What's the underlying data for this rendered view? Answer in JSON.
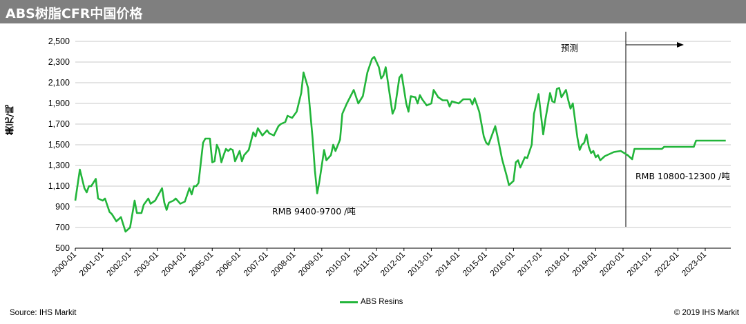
{
  "header": {
    "title": "ABS树脂CFR中国价格"
  },
  "source": "Source: IHS Markit",
  "copyright": "© 2019 IHS Markit",
  "colors": {
    "series": "#22b53a",
    "header_bg": "#7f7f7f"
  },
  "chart_data": {
    "type": "line",
    "title": "ABS树脂CFR中国价格",
    "ylabel": "美元/吨",
    "xlabel": "",
    "ylim": [
      500,
      2500
    ],
    "yticks": [
      "500",
      "700",
      "900",
      "1,100",
      "1,300",
      "1,500",
      "1,700",
      "1,900",
      "2,100",
      "2,300",
      "2,500"
    ],
    "xticks": [
      "2000-01",
      "2001-01",
      "2002-01",
      "2003-01",
      "2004-01",
      "2005-01",
      "2006-01",
      "2007-01",
      "2008-01",
      "2009-01",
      "2010-01",
      "2011-01",
      "2012-01",
      "2013-01",
      "2014-01",
      "2015-01",
      "2016-01",
      "2017-01",
      "2018-01",
      "2019-01",
      "2020-01",
      "2021-01",
      "2022-01",
      "2023-01"
    ],
    "grid": true,
    "legend_position": "bottom",
    "forecast_start": "2020-01",
    "forecast_label": "预测",
    "annotations": [
      "RMB 9400-9700 /吨",
      "RMB 10800-12300 /吨"
    ],
    "series": [
      {
        "name": "ABS Resins",
        "points": [
          [
            "2000-01",
            960
          ],
          [
            "2000-03",
            1260
          ],
          [
            "2000-05",
            1080
          ],
          [
            "2000-06",
            1040
          ],
          [
            "2000-07",
            1100
          ],
          [
            "2000-08",
            1100
          ],
          [
            "2000-10",
            1170
          ],
          [
            "2000-11",
            980
          ],
          [
            "2001-01",
            960
          ],
          [
            "2001-02",
            980
          ],
          [
            "2001-04",
            850
          ],
          [
            "2001-05",
            830
          ],
          [
            "2001-07",
            760
          ],
          [
            "2001-09",
            800
          ],
          [
            "2001-11",
            660
          ],
          [
            "2002-01",
            700
          ],
          [
            "2002-03",
            960
          ],
          [
            "2002-04",
            840
          ],
          [
            "2002-06",
            840
          ],
          [
            "2002-07",
            920
          ],
          [
            "2002-09",
            980
          ],
          [
            "2002-10",
            930
          ],
          [
            "2002-12",
            960
          ],
          [
            "2003-03",
            1080
          ],
          [
            "2003-04",
            940
          ],
          [
            "2003-05",
            870
          ],
          [
            "2003-06",
            940
          ],
          [
            "2003-08",
            960
          ],
          [
            "2003-09",
            980
          ],
          [
            "2003-11",
            930
          ],
          [
            "2004-01",
            950
          ],
          [
            "2004-03",
            1080
          ],
          [
            "2004-04",
            1020
          ],
          [
            "2004-05",
            1100
          ],
          [
            "2004-06",
            1100
          ],
          [
            "2004-07",
            1130
          ],
          [
            "2004-09",
            1520
          ],
          [
            "2004-10",
            1560
          ],
          [
            "2004-12",
            1560
          ],
          [
            "2005-01",
            1330
          ],
          [
            "2005-02",
            1340
          ],
          [
            "2005-03",
            1500
          ],
          [
            "2005-04",
            1450
          ],
          [
            "2005-05",
            1330
          ],
          [
            "2005-06",
            1400
          ],
          [
            "2005-07",
            1460
          ],
          [
            "2005-08",
            1440
          ],
          [
            "2005-09",
            1460
          ],
          [
            "2005-10",
            1450
          ],
          [
            "2005-11",
            1340
          ],
          [
            "2006-01",
            1440
          ],
          [
            "2006-02",
            1340
          ],
          [
            "2006-03",
            1400
          ],
          [
            "2006-05",
            1450
          ],
          [
            "2006-07",
            1620
          ],
          [
            "2006-08",
            1580
          ],
          [
            "2006-09",
            1660
          ],
          [
            "2006-11",
            1590
          ],
          [
            "2007-01",
            1640
          ],
          [
            "2007-02",
            1610
          ],
          [
            "2007-04",
            1590
          ],
          [
            "2007-06",
            1680
          ],
          [
            "2007-07",
            1700
          ],
          [
            "2007-09",
            1720
          ],
          [
            "2007-10",
            1780
          ],
          [
            "2007-12",
            1760
          ],
          [
            "2008-02",
            1820
          ],
          [
            "2008-04",
            2000
          ],
          [
            "2008-05",
            2200
          ],
          [
            "2008-07",
            2050
          ],
          [
            "2008-09",
            1560
          ],
          [
            "2008-10",
            1250
          ],
          [
            "2008-11",
            1030
          ],
          [
            "2008-12",
            1150
          ],
          [
            "2009-02",
            1450
          ],
          [
            "2009-03",
            1350
          ],
          [
            "2009-05",
            1400
          ],
          [
            "2009-06",
            1500
          ],
          [
            "2009-07",
            1440
          ],
          [
            "2009-09",
            1550
          ],
          [
            "2009-10",
            1800
          ],
          [
            "2009-12",
            1900
          ],
          [
            "2010-03",
            2030
          ],
          [
            "2010-05",
            1900
          ],
          [
            "2010-07",
            1970
          ],
          [
            "2010-09",
            2200
          ],
          [
            "2010-11",
            2330
          ],
          [
            "2010-12",
            2350
          ],
          [
            "2011-02",
            2250
          ],
          [
            "2011-03",
            2140
          ],
          [
            "2011-04",
            2170
          ],
          [
            "2011-05",
            2250
          ],
          [
            "2011-07",
            1950
          ],
          [
            "2011-08",
            1800
          ],
          [
            "2011-09",
            1850
          ],
          [
            "2011-11",
            2150
          ],
          [
            "2011-12",
            2180
          ],
          [
            "2012-02",
            1900
          ],
          [
            "2012-03",
            1820
          ],
          [
            "2012-04",
            1970
          ],
          [
            "2012-06",
            1960
          ],
          [
            "2012-07",
            1900
          ],
          [
            "2012-08",
            1980
          ],
          [
            "2012-09",
            1940
          ],
          [
            "2012-11",
            1880
          ],
          [
            "2013-01",
            1900
          ],
          [
            "2013-02",
            2030
          ],
          [
            "2013-04",
            1960
          ],
          [
            "2013-06",
            1930
          ],
          [
            "2013-08",
            1930
          ],
          [
            "2013-09",
            1870
          ],
          [
            "2013-10",
            1920
          ],
          [
            "2014-01",
            1900
          ],
          [
            "2014-03",
            1940
          ],
          [
            "2014-06",
            1940
          ],
          [
            "2014-07",
            1890
          ],
          [
            "2014-08",
            1950
          ],
          [
            "2014-10",
            1820
          ],
          [
            "2014-12",
            1580
          ],
          [
            "2015-01",
            1520
          ],
          [
            "2015-02",
            1500
          ],
          [
            "2015-04",
            1620
          ],
          [
            "2015-05",
            1680
          ],
          [
            "2015-06",
            1580
          ],
          [
            "2015-08",
            1360
          ],
          [
            "2015-10",
            1200
          ],
          [
            "2015-11",
            1110
          ],
          [
            "2016-01",
            1150
          ],
          [
            "2016-02",
            1330
          ],
          [
            "2016-03",
            1350
          ],
          [
            "2016-04",
            1280
          ],
          [
            "2016-06",
            1380
          ],
          [
            "2016-07",
            1370
          ],
          [
            "2016-09",
            1500
          ],
          [
            "2016-10",
            1800
          ],
          [
            "2016-12",
            1990
          ],
          [
            "2017-02",
            1600
          ],
          [
            "2017-03",
            1750
          ],
          [
            "2017-05",
            2000
          ],
          [
            "2017-06",
            1920
          ],
          [
            "2017-07",
            1910
          ],
          [
            "2017-08",
            2040
          ],
          [
            "2017-09",
            2050
          ],
          [
            "2017-10",
            1960
          ],
          [
            "2017-12",
            2030
          ],
          [
            "2018-01",
            1930
          ],
          [
            "2018-02",
            1850
          ],
          [
            "2018-03",
            1900
          ],
          [
            "2018-05",
            1570
          ],
          [
            "2018-06",
            1450
          ],
          [
            "2018-07",
            1500
          ],
          [
            "2018-08",
            1520
          ],
          [
            "2018-09",
            1600
          ],
          [
            "2018-10",
            1480
          ],
          [
            "2018-11",
            1420
          ],
          [
            "2018-12",
            1440
          ],
          [
            "2019-01",
            1380
          ],
          [
            "2019-02",
            1400
          ],
          [
            "2019-03",
            1350
          ],
          [
            "2019-05",
            1390
          ],
          [
            "2019-07",
            1410
          ],
          [
            "2019-09",
            1430
          ],
          [
            "2019-12",
            1440
          ],
          [
            "2020-03",
            1400
          ],
          [
            "2020-05",
            1360
          ],
          [
            "2020-06",
            1460
          ],
          [
            "2021-06",
            1460
          ],
          [
            "2021-07",
            1480
          ],
          [
            "2022-08",
            1480
          ],
          [
            "2022-09",
            1540
          ],
          [
            "2023-10",
            1540
          ]
        ]
      }
    ]
  }
}
